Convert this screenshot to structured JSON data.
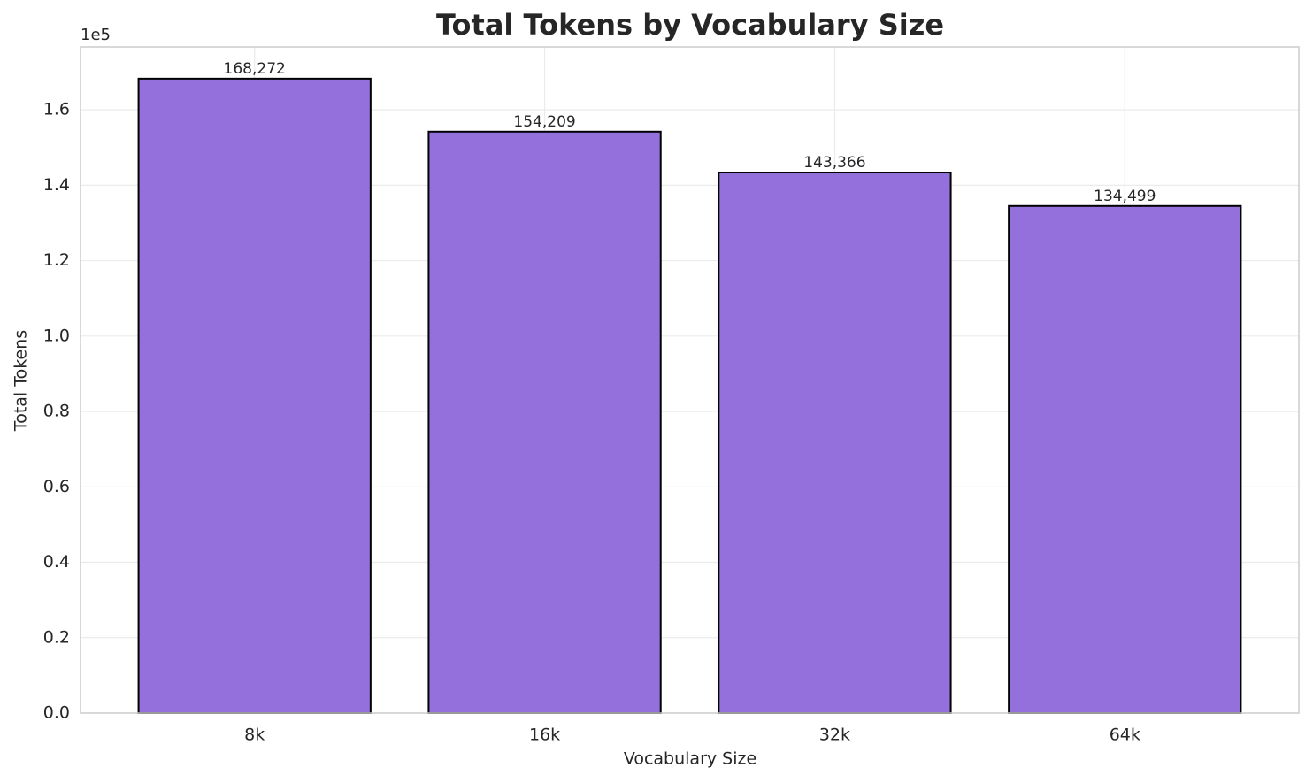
{
  "chart_data": {
    "type": "bar",
    "title": "Total Tokens by Vocabulary Size",
    "x_label": "Vocabulary Size",
    "y_label": "Total Tokens",
    "y_offset_label": "1e5",
    "categories": [
      "8k",
      "16k",
      "32k",
      "64k"
    ],
    "values": [
      168272,
      154209,
      143366,
      134499
    ],
    "value_labels": [
      "168,272",
      "154,209",
      "143,366",
      "134,499"
    ],
    "color": "#9370db",
    "ylim": [
      0,
      176686
    ],
    "yticks": [
      {
        "value": 0,
        "label": "0.0"
      },
      {
        "value": 20000,
        "label": "0.2"
      },
      {
        "value": 40000,
        "label": "0.4"
      },
      {
        "value": 60000,
        "label": "0.6"
      },
      {
        "value": 80000,
        "label": "0.8"
      },
      {
        "value": 100000,
        "label": "1.0"
      },
      {
        "value": 120000,
        "label": "1.2"
      },
      {
        "value": 140000,
        "label": "1.4"
      },
      {
        "value": 160000,
        "label": "1.6"
      }
    ],
    "grid": true
  }
}
